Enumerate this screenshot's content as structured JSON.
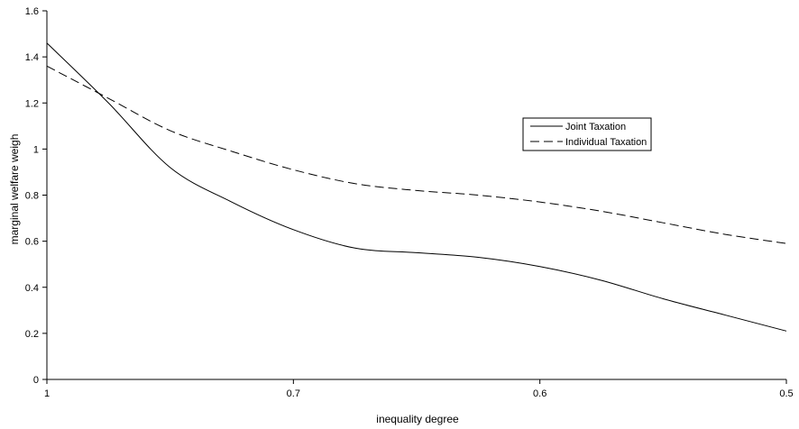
{
  "chart_data": {
    "type": "line",
    "title": "",
    "xlabel": "inequality degree",
    "ylabel": "marginal welfare weigh",
    "x_tick_labels": [
      "1",
      "0.7",
      "0.6",
      "0.5"
    ],
    "y_tick_labels": [
      "0",
      "0.2",
      "0.4",
      "0.6",
      "0.8",
      "1",
      "1.2",
      "1.4",
      "1.6"
    ],
    "ylim": [
      0,
      1.6
    ],
    "grid": false,
    "legend_position": "top-right",
    "series": [
      {
        "name": "Joint Taxation",
        "style": "solid",
        "color": "#000000",
        "x": [
          1,
          1.5,
          2,
          2.5,
          3,
          3.5,
          4,
          4.5,
          5,
          5.5,
          6,
          6.5,
          7
        ],
        "y": [
          1.46,
          1.2,
          0.92,
          0.77,
          0.65,
          0.57,
          0.55,
          0.53,
          0.49,
          0.43,
          0.35,
          0.28,
          0.21
        ]
      },
      {
        "name": "Individual Taxation",
        "style": "dashed",
        "color": "#000000",
        "x": [
          1,
          1.5,
          2,
          2.5,
          3,
          3.5,
          4,
          4.5,
          5,
          5.5,
          6,
          6.5,
          7
        ],
        "y": [
          1.36,
          1.22,
          1.08,
          0.99,
          0.91,
          0.85,
          0.82,
          0.8,
          0.77,
          0.73,
          0.68,
          0.63,
          0.59
        ]
      }
    ]
  }
}
